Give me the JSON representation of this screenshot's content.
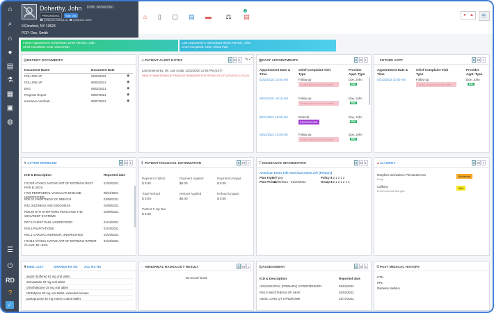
{
  "patient": {
    "name": "Doherthy, John",
    "dob": "DOB: 00/00/2001",
    "id_badge": "PRE00000001",
    "status_badge": "Stat: 000",
    "contact": "☎ (008)101-0000(111)   ☎ (008)101-0000",
    "address": "9 Elmsford, NY 10523",
    "pcp": "PCP: Doe, Smith"
  },
  "appointments_bar": {
    "future_line1": "Future Appointment: 04/10/2022 10:00 AM Doe, John",
    "future_line2": "Chief Complaint: CKD, Chest Pain",
    "last_line1": "Last Appointment: 03/22/2022 09:00 AM Doe, John",
    "last_line2": "Chief Complaint: CKD, Chest Pain"
  },
  "toolbar": {
    "notification_count": "3"
  },
  "size_toggles": [
    "S",
    "M",
    "L"
  ],
  "recent_documents": {
    "title": "RECENT DOCUMENTS",
    "col_name": "Document Name",
    "col_date": "Document Date",
    "rows": [
      {
        "name": "FOLLOW UP",
        "date": "02/03/2022"
      },
      {
        "name": "FOLLOW UP",
        "date": "08/02/2021"
      },
      {
        "name": "EKG",
        "date": "08/02/2021"
      },
      {
        "name": "Progress Report",
        "date": "08/07/2021"
      },
      {
        "name": "Insurance Verificati...",
        "date": "08/07/2021"
      }
    ]
  },
  "alert_notes": {
    "title": "PATIENT ALERT NOTES",
    "entered_by": "Last Entered By: Mr. Low Cedar 12/22/2020 12:05 PM (EST)",
    "note": "HEALTH MAINTENANCE FINDINGS REMINDER FOR SERVICES OF UPDATED 12/21/20"
  },
  "past_appointments": {
    "title": "PAST APPOINTMENTS",
    "col_date": "Appointment Date & Time",
    "col_complaint": "Chief Complaint Visit Type",
    "col_provider": "Provider Appt. Type",
    "rows": [
      {
        "date": "02/15/2022 10:00 AM",
        "complaint": "Follow up",
        "tag": "Lorem ipsum dolor sit amet",
        "tag_style": "pink",
        "provider": "Doe, John",
        "type": "EM"
      },
      {
        "date": "08/10/2021 10:15 AM",
        "complaint": "Follow up",
        "tag": "Lorem ipsum dolor sit amet",
        "tag_style": "pink",
        "provider": "Doe, John",
        "type": "EM"
      },
      {
        "date": "05/11/2021 10:00 AM",
        "complaint": "Referral",
        "tag": "PROCEDURE",
        "tag_style": "purple",
        "provider": "Doe, John",
        "type": "EM"
      },
      {
        "date": "05/11/2021 10:00 AM",
        "complaint": "Follow up",
        "tag": "Lorem ipsum dolor sit amet",
        "tag_style": "pink",
        "provider": "Doe, John",
        "type": "EM"
      }
    ]
  },
  "future_appointments": {
    "title": "FUTURE APPT.",
    "col_date": "Appointment Date & Time",
    "col_complaint": "Chief Complaint Visit Type",
    "col_provider": "Provider Appt. Type",
    "rows": [
      {
        "date": "04/10/2022 10:00 AM",
        "complaint": "Follow up",
        "tag": "Lorem ipsum dolor sit amet",
        "provider": "Doe, John",
        "type": "EM"
      }
    ]
  },
  "active_problem": {
    "title": "ACTIVE PROBLEM",
    "col_icd": "ICD & Description",
    "col_date": "Reported date",
    "rows": [
      {
        "desc": "I70.223 ATHSCL NATIVE ART OF EXTRM W REST PAIN B LEGS",
        "date": "01/28/2021"
      },
      {
        "desc": "I73.9 PERIPHERAL VASCULAR DISEASE, UNSPECIFIED",
        "date": "05/11/2021"
      },
      {
        "desc": "R06.02 SHORTNESS OF BREATH",
        "date": "03/08/2021"
      },
      {
        "desc": "R42 DIZZINESS AND GIDDINESS",
        "date": "03/08/2021"
      },
      {
        "desc": "R09.89 OTH SYMPTOMS INVOLVING THE CIRC/RESP SYSTEMS",
        "date": "03/08/2021"
      },
      {
        "desc": "R07.9 CHEST PAIN, UNSPECIFIED",
        "date": "01/19/2021"
      },
      {
        "desc": "R00.2 PALPITATIONS",
        "date": "01/19/2021"
      },
      {
        "desc": "R01.1 CARDIAC MURMUR, UNSPECIFIED",
        "date": "01/19/2021"
      },
      {
        "desc": "I70.213 ATHSCL NATIVE ART OF EXTRM W INTRMT CLAUD, BI LEGS",
        "date": "01/19/2021"
      }
    ]
  },
  "financial": {
    "title": "PATIENT FINANCIAL INFORMATION",
    "labels": [
      "Payment Collect.",
      "Payment Applied",
      "Payment Unappl.",
      "Total Refund",
      "Refund Applied",
      "Refund Unappl.",
      "Patient F-Up Bal."
    ],
    "values": [
      "$ 0.00",
      "$0.00",
      "$ 0.00",
      "$ 0.00",
      "$0.00",
      "$ 0.00",
      "$ 0.00"
    ]
  },
  "insurance": {
    "title": "INSURANCE INFORMATION",
    "plan_name": "American Home Life American Home Life (Primary)",
    "plan_type_label": "Plan Type:",
    "plan_type": "Self-pay",
    "plan_period_label": "Plan Period:",
    "plan_period": "11/20/2021 - 01/20/2022",
    "policy_label": "Policy #:",
    "policy": "1 2 1 2 1 2",
    "group_label": "Group #:",
    "group": "1 2 1 2 1 2 1 2"
  },
  "allergy": {
    "title": "ALLERGY",
    "rows": [
      {
        "name": "Morphine derivatives Phenanthrenes",
        "sub": "Drug",
        "severity": "Moderate",
        "color": "#f5a623"
      },
      {
        "name": "Caffeine",
        "sub": "Environmental Allergies",
        "severity": "Mild",
        "color": "#f8e71c"
      }
    ]
  },
  "meds": {
    "title": "MED. LIST",
    "link1": "SHARED RX HX",
    "link2": "ALL RX HX",
    "items": [
      "aspirin buffered 81 mg oral tablet",
      "atorvastatin 40 mg oral tablet",
      "chlorthalidone 25 mg oral tablet",
      "NIFEdipine 90 mg oral tablet, extended release",
      "pantoprazole 40 mg enteric coated tablet"
    ]
  },
  "radiology": {
    "title": "ABNORMAL RADIOLOGY RESULT",
    "empty": "No record found"
  },
  "assessment": {
    "title": "ASSESSMENT",
    "col_icd": "ICD & Description",
    "col_date": "Reported date",
    "rows": [
      {
        "desc": "I10 ESSENTIAL (PRIMARY) HYPERTENSION",
        "date": "02/04/2022"
      },
      {
        "desc": "R20.0 ANESTHESIA OF SKIN",
        "date": "02/04/2022"
      },
      {
        "desc": "I45.81 LONG QT SYNDROME",
        "date": "01/17/2022"
      }
    ]
  },
  "pmh": {
    "title": "PAST MEDICAL HISTORY",
    "items": [
      "HTN",
      "HPL",
      "Diabetes Mellitus"
    ]
  },
  "nav": {
    "initials": "RD"
  }
}
